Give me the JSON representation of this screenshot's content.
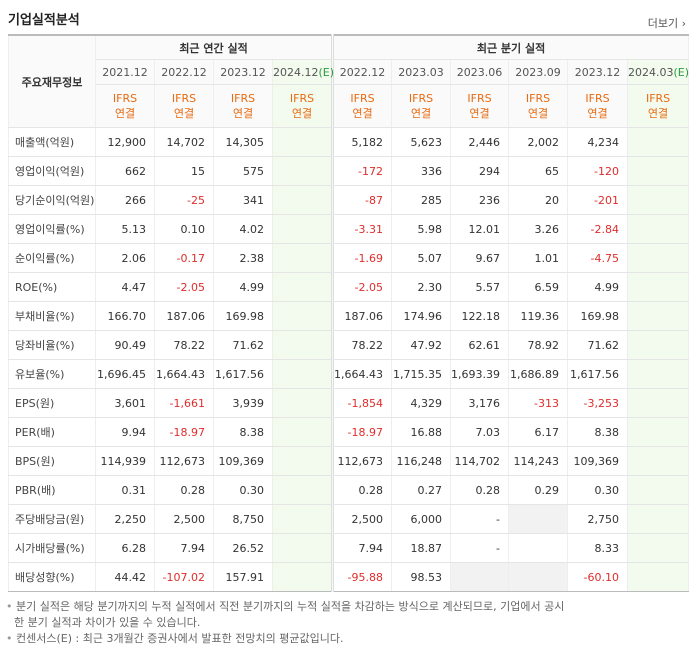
{
  "header": {
    "title": "기업실적분석",
    "more": "더보기"
  },
  "table": {
    "corner": "주요재무정보",
    "groups": [
      {
        "label": "최근 연간 실적",
        "span": 4
      },
      {
        "label": "최근 분기 실적",
        "span": 6
      }
    ],
    "periods": [
      {
        "label": "2021.12",
        "standard": "IFRS",
        "basis": "연결"
      },
      {
        "label": "2022.12",
        "standard": "IFRS",
        "basis": "연결"
      },
      {
        "label": "2023.12",
        "standard": "IFRS",
        "basis": "연결"
      },
      {
        "label": "2024.12",
        "suffix": "(E)",
        "standard": "IFRS",
        "basis": "연결"
      },
      {
        "label": "2022.12",
        "standard": "IFRS",
        "basis": "연결"
      },
      {
        "label": "2023.03",
        "standard": "IFRS",
        "basis": "연결"
      },
      {
        "label": "2023.06",
        "standard": "IFRS",
        "basis": "연결"
      },
      {
        "label": "2023.09",
        "standard": "IFRS",
        "basis": "연결"
      },
      {
        "label": "2023.12",
        "standard": "IFRS",
        "basis": "연결"
      },
      {
        "label": "2024.03",
        "suffix": "(E)",
        "standard": "IFRS",
        "basis": "연결"
      }
    ],
    "rows": [
      {
        "label": "매출액(억원)",
        "cells": [
          "12,900",
          "14,702",
          "14,305",
          null,
          "5,182",
          "5,623",
          "2,446",
          "2,002",
          "4,234",
          null
        ]
      },
      {
        "label": "영업이익(억원)",
        "cells": [
          "662",
          "15",
          "575",
          null,
          "-172",
          "336",
          "294",
          "65",
          "-120",
          null
        ]
      },
      {
        "label": "당기순이익(억원)",
        "cells": [
          "266",
          "-25",
          "341",
          null,
          "-87",
          "285",
          "236",
          "20",
          "-201",
          null
        ]
      },
      {
        "label": "영업이익률(%)",
        "cells": [
          "5.13",
          "0.10",
          "4.02",
          null,
          "-3.31",
          "5.98",
          "12.01",
          "3.26",
          "-2.84",
          null
        ]
      },
      {
        "label": "순이익률(%)",
        "cells": [
          "2.06",
          "-0.17",
          "2.38",
          null,
          "-1.69",
          "5.07",
          "9.67",
          "1.01",
          "-4.75",
          null
        ]
      },
      {
        "label": "ROE(%)",
        "cells": [
          "4.47",
          "-2.05",
          "4.99",
          null,
          "-2.05",
          "2.30",
          "5.57",
          "6.59",
          "4.99",
          null
        ]
      },
      {
        "label": "부채비율(%)",
        "cells": [
          "166.70",
          "187.06",
          "169.98",
          null,
          "187.06",
          "174.96",
          "122.18",
          "119.36",
          "169.98",
          null
        ]
      },
      {
        "label": "당좌비율(%)",
        "cells": [
          "90.49",
          "78.22",
          "71.62",
          null,
          "78.22",
          "47.92",
          "62.61",
          "78.92",
          "71.62",
          null
        ]
      },
      {
        "label": "유보율(%)",
        "cells": [
          "1,696.45",
          "1,664.43",
          "1,617.56",
          null,
          "1,664.43",
          "1,715.35",
          "1,693.39",
          "1,686.89",
          "1,617.56",
          null
        ]
      },
      {
        "label": "EPS(원)",
        "cells": [
          "3,601",
          "-1,661",
          "3,939",
          null,
          "-1,854",
          "4,329",
          "3,176",
          "-313",
          "-3,253",
          null
        ]
      },
      {
        "label": "PER(배)",
        "cells": [
          "9.94",
          "-18.97",
          "8.38",
          null,
          "-18.97",
          "16.88",
          "7.03",
          "6.17",
          "8.38",
          null
        ]
      },
      {
        "label": "BPS(원)",
        "cells": [
          "114,939",
          "112,673",
          "109,369",
          null,
          "112,673",
          "116,248",
          "114,702",
          "114,243",
          "109,369",
          null
        ]
      },
      {
        "label": "PBR(배)",
        "cells": [
          "0.31",
          "0.28",
          "0.30",
          null,
          "0.28",
          "0.27",
          "0.28",
          "0.29",
          "0.30",
          null
        ]
      },
      {
        "label": "주당배당금(원)",
        "cells": [
          "2,250",
          "2,500",
          "8,750",
          null,
          "2,500",
          "6,000",
          "-",
          null,
          "2,750",
          null
        ],
        "unavailable": [
          7
        ]
      },
      {
        "label": "시가배당률(%)",
        "cells": [
          "6.28",
          "7.94",
          "26.52",
          null,
          "7.94",
          "18.87",
          "-",
          null,
          "8.33",
          null
        ]
      },
      {
        "label": "배당성향(%)",
        "cells": [
          "44.42",
          "-107.02",
          "157.91",
          null,
          "-95.88",
          "98.53",
          null,
          null,
          "-60.10",
          null
        ],
        "unavailable": [
          6,
          7
        ]
      }
    ],
    "group_breaks": [
      3,
      6,
      9,
      13
    ]
  },
  "notes": [
    "분기 실적은 해당 분기까지의 누적 실적에서 직전 분기까지의 누적 실적을 차감하는 방식으로 계산되므로, 기업에서 공시한 분기 실적과 차이가 있을 수 있습니다.",
    "컨센서스(E) : 최근 3개월간 증권사에서 발표한 전망치의 평균값입니다."
  ]
}
